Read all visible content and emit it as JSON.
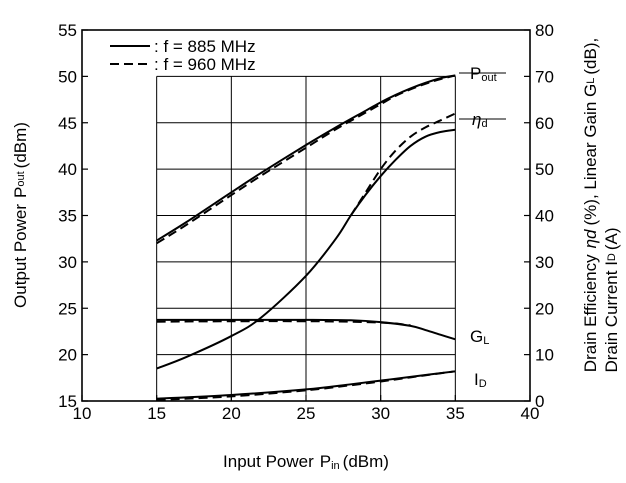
{
  "chart_data": {
    "type": "line",
    "xlabel": {
      "main": "Input Power",
      "symbol": "P",
      "sub": "in",
      "unit": "(dBm)"
    },
    "ylabel_left": {
      "main": "Output Power",
      "symbol": "P",
      "sub": "out",
      "unit": "(dBm)"
    },
    "ylabel_right": {
      "line1": {
        "pre": "Drain Efficiency",
        "symbol": "ηd",
        "post": "(%), Linear Gain G",
        "sub": "L",
        "tail": "(dB),"
      },
      "line2": {
        "pre": "Drain Current I",
        "sub": "D",
        "tail": "(A)"
      }
    },
    "xlim": [
      10,
      40
    ],
    "ylim_left": [
      15,
      55
    ],
    "ylim_right": [
      0,
      80
    ],
    "x_ticks": [
      10,
      15,
      20,
      25,
      30,
      35,
      40
    ],
    "y_left_ticks": [
      15,
      20,
      25,
      30,
      35,
      40,
      45,
      50,
      55
    ],
    "y_right_ticks": [
      0,
      10,
      20,
      30,
      40,
      50,
      60,
      70,
      80
    ],
    "x_tick_labels": [
      "10",
      "15",
      "20",
      "25",
      "30",
      "35",
      "40"
    ],
    "y_left_tick_labels": [
      "15",
      "20",
      "25",
      "30",
      "35",
      "40",
      "45",
      "50",
      "55"
    ],
    "y_right_tick_labels": [
      "0",
      "10",
      "20",
      "30",
      "40",
      "50",
      "60",
      "70",
      "80"
    ],
    "grid": true,
    "legend": {
      "placement": "top-left",
      "entries": [
        {
          "label": ": f = 885 MHz",
          "style": "solid"
        },
        {
          "label": ": f = 960 MHz",
          "style": "dashed"
        }
      ]
    },
    "curve_labels": {
      "pout": {
        "main": "P",
        "sub": "out"
      },
      "eta": {
        "main": "η",
        "sub": "d"
      },
      "gl": {
        "main": "G",
        "sub": "L"
      },
      "id": {
        "main": "I",
        "sub": "D"
      }
    },
    "series": [
      {
        "curve": "pout",
        "freq": "885 MHz",
        "style": "solid",
        "axis": "left",
        "x": [
          15,
          17,
          20,
          22,
          25,
          27,
          29,
          30,
          31,
          32,
          33,
          34,
          35
        ],
        "y": [
          32.3,
          34.3,
          37.5,
          39.6,
          42.6,
          44.5,
          46.3,
          47.2,
          48.0,
          48.7,
          49.3,
          49.8,
          50.1
        ]
      },
      {
        "curve": "pout",
        "freq": "960 MHz",
        "style": "dashed",
        "axis": "left",
        "x": [
          15,
          17,
          20,
          22,
          25,
          27,
          29,
          30,
          31,
          32,
          33,
          34,
          35
        ],
        "y": [
          32.0,
          34.0,
          37.2,
          39.3,
          42.3,
          44.3,
          46.1,
          47.0,
          47.9,
          48.6,
          49.2,
          49.7,
          50.1
        ]
      },
      {
        "curve": "eta",
        "freq": "885 MHz",
        "style": "solid",
        "axis": "right",
        "x": [
          15,
          17,
          20,
          22,
          25,
          27,
          28,
          29,
          30,
          31,
          32,
          33,
          34,
          35
        ],
        "y": [
          7,
          9.5,
          14,
          18,
          27,
          35,
          40,
          44.5,
          48.5,
          52,
          55,
          57,
          58,
          58.5
        ]
      },
      {
        "curve": "eta",
        "freq": "960 MHz",
        "style": "dashed",
        "axis": "right",
        "x": [
          28,
          29,
          30,
          31,
          32,
          33,
          34,
          35
        ],
        "y": [
          40,
          45,
          50,
          54,
          57,
          59,
          60.5,
          62
        ]
      },
      {
        "curve": "gl",
        "freq": "885 MHz",
        "style": "solid",
        "axis": "right",
        "x": [
          15,
          20,
          25,
          28,
          30,
          32,
          33,
          34,
          35
        ],
        "y": [
          17.5,
          17.5,
          17.5,
          17.4,
          17.0,
          16.2,
          15.3,
          14.3,
          13.3
        ]
      },
      {
        "curve": "gl",
        "freq": "960 MHz",
        "style": "dashed",
        "axis": "right",
        "x": [
          15,
          20,
          25,
          28,
          30,
          31,
          32
        ],
        "y": [
          17.1,
          17.2,
          17.2,
          17.1,
          16.9,
          16.7,
          16.3
        ]
      },
      {
        "curve": "id",
        "freq": "885 MHz",
        "style": "solid",
        "axis": "right",
        "x": [
          15,
          20,
          25,
          28,
          30,
          32,
          35
        ],
        "y": [
          0.5,
          1.3,
          2.5,
          3.6,
          4.4,
          5.2,
          6.4
        ]
      },
      {
        "curve": "id",
        "freq": "960 MHz",
        "style": "dashed",
        "axis": "right",
        "x": [
          15,
          20,
          25,
          28,
          30,
          32,
          35
        ],
        "y": [
          0.2,
          1.0,
          2.3,
          3.4,
          4.2,
          5.1,
          6.4
        ]
      }
    ]
  }
}
